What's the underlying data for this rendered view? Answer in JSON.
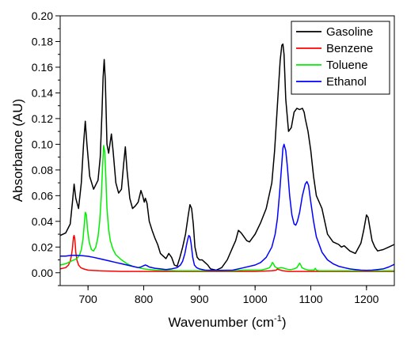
{
  "chart_data": {
    "type": "line",
    "xlabel": "Wavenumber (cm",
    "xlabel_sup": "-1",
    "xlabel_end": ")",
    "ylabel": "Absorbance (AU)",
    "xlim": [
      650,
      1250
    ],
    "ylim": [
      -0.01,
      0.2
    ],
    "x_ticks": [
      700,
      800,
      900,
      1000,
      1100,
      1200
    ],
    "x_tick_labels": [
      "700",
      "800",
      "900",
      "1000",
      "1100",
      "1200"
    ],
    "y_ticks": [
      0.0,
      0.02,
      0.04,
      0.06,
      0.08,
      0.1,
      0.12,
      0.14,
      0.16,
      0.18,
      0.2
    ],
    "y_tick_labels": [
      "0.00",
      "0.02",
      "0.04",
      "0.06",
      "0.08",
      "0.10",
      "0.12",
      "0.14",
      "0.16",
      "0.18",
      "0.20"
    ],
    "grid": false,
    "legend_position": "top-right",
    "series": [
      {
        "name": "Gasoline",
        "color": "#000000",
        "x": [
          650,
          660,
          668,
          672,
          675,
          678,
          683,
          688,
          692,
          695,
          698,
          703,
          710,
          718,
          722,
          725,
          727,
          729,
          731,
          734,
          737,
          740,
          742,
          745,
          750,
          755,
          760,
          764,
          767,
          770,
          775,
          780,
          785,
          790,
          795,
          798,
          801,
          803,
          806,
          810,
          815,
          820,
          825,
          830,
          835,
          840,
          845,
          850,
          855,
          860,
          865,
          870,
          875,
          880,
          883,
          886,
          889,
          892,
          896,
          900,
          905,
          910,
          915,
          920,
          930,
          940,
          950,
          960,
          965,
          970,
          975,
          980,
          985,
          990,
          995,
          1000,
          1010,
          1020,
          1030,
          1035,
          1040,
          1045,
          1048,
          1050,
          1052,
          1055,
          1060,
          1065,
          1070,
          1075,
          1080,
          1085,
          1088,
          1090,
          1095,
          1100,
          1105,
          1110,
          1115,
          1120,
          1125,
          1130,
          1140,
          1150,
          1155,
          1160,
          1170,
          1180,
          1190,
          1195,
          1200,
          1203,
          1206,
          1210,
          1215,
          1220,
          1230,
          1240,
          1250
        ],
        "y": [
          0.029,
          0.031,
          0.038,
          0.055,
          0.069,
          0.058,
          0.05,
          0.07,
          0.1,
          0.118,
          0.1,
          0.075,
          0.065,
          0.072,
          0.09,
          0.125,
          0.152,
          0.166,
          0.15,
          0.1,
          0.093,
          0.102,
          0.108,
          0.095,
          0.07,
          0.062,
          0.065,
          0.085,
          0.098,
          0.08,
          0.058,
          0.05,
          0.052,
          0.055,
          0.064,
          0.06,
          0.055,
          0.058,
          0.054,
          0.04,
          0.033,
          0.027,
          0.022,
          0.015,
          0.013,
          0.011,
          0.015,
          0.012,
          0.006,
          0.005,
          0.012,
          0.02,
          0.03,
          0.045,
          0.053,
          0.05,
          0.038,
          0.02,
          0.012,
          0.01,
          0.01,
          0.008,
          0.006,
          0.003,
          0.002,
          0.004,
          0.01,
          0.02,
          0.025,
          0.033,
          0.031,
          0.028,
          0.025,
          0.024,
          0.027,
          0.03,
          0.039,
          0.05,
          0.07,
          0.095,
          0.13,
          0.165,
          0.177,
          0.178,
          0.17,
          0.135,
          0.11,
          0.113,
          0.125,
          0.128,
          0.127,
          0.128,
          0.125,
          0.12,
          0.11,
          0.095,
          0.075,
          0.06,
          0.055,
          0.05,
          0.04,
          0.03,
          0.024,
          0.022,
          0.02,
          0.021,
          0.017,
          0.015,
          0.023,
          0.033,
          0.045,
          0.043,
          0.035,
          0.025,
          0.02,
          0.017,
          0.018,
          0.02,
          0.022
        ]
      },
      {
        "name": "Benzene",
        "color": "#ff0000",
        "x": [
          650,
          660,
          665,
          668,
          670,
          672,
          673,
          674,
          675,
          676,
          677,
          678,
          680,
          683,
          687,
          692,
          700,
          720,
          760,
          820,
          900,
          960,
          1000,
          1030,
          1038,
          1040,
          1042,
          1046,
          1050,
          1060,
          1100,
          1150,
          1200,
          1250
        ],
        "y": [
          0.003,
          0.004,
          0.006,
          0.009,
          0.013,
          0.019,
          0.024,
          0.028,
          0.029,
          0.027,
          0.022,
          0.016,
          0.01,
          0.006,
          0.004,
          0.003,
          0.002,
          0.0015,
          0.001,
          0.001,
          0.001,
          0.001,
          0.001,
          0.0015,
          0.002,
          0.003,
          0.0025,
          0.002,
          0.0015,
          0.001,
          0.001,
          0.001,
          0.001,
          0.001
        ]
      },
      {
        "name": "Toluene",
        "color": "#00ee00",
        "x": [
          650,
          660,
          670,
          675,
          680,
          685,
          688,
          691,
          693,
          695,
          697,
          699,
          702,
          706,
          710,
          714,
          718,
          721,
          724,
          726,
          728,
          730,
          732,
          734,
          737,
          740,
          745,
          750,
          760,
          770,
          780,
          790,
          800,
          820,
          840,
          860,
          880,
          900,
          920,
          940,
          960,
          980,
          1000,
          1010,
          1020,
          1026,
          1029,
          1031,
          1033,
          1035,
          1038,
          1042,
          1046,
          1050,
          1055,
          1060,
          1065,
          1070,
          1075,
          1078,
          1080,
          1082,
          1084,
          1088,
          1092,
          1096,
          1100,
          1106,
          1108,
          1110,
          1115,
          1120,
          1140,
          1160,
          1180,
          1200,
          1220,
          1250
        ],
        "y": [
          0.006,
          0.007,
          0.009,
          0.01,
          0.011,
          0.014,
          0.018,
          0.026,
          0.036,
          0.047,
          0.045,
          0.034,
          0.024,
          0.018,
          0.017,
          0.02,
          0.028,
          0.04,
          0.06,
          0.082,
          0.099,
          0.094,
          0.074,
          0.05,
          0.034,
          0.025,
          0.018,
          0.014,
          0.01,
          0.007,
          0.005,
          0.004,
          0.003,
          0.002,
          0.0018,
          0.0015,
          0.0015,
          0.0015,
          0.0015,
          0.0015,
          0.0015,
          0.002,
          0.002,
          0.002,
          0.003,
          0.004,
          0.006,
          0.008,
          0.007,
          0.005,
          0.004,
          0.0035,
          0.004,
          0.0038,
          0.003,
          0.0025,
          0.0025,
          0.003,
          0.004,
          0.006,
          0.0075,
          0.006,
          0.004,
          0.003,
          0.0025,
          0.002,
          0.002,
          0.002,
          0.0035,
          0.002,
          0.0015,
          0.0015,
          0.0015,
          0.0015,
          0.0015,
          0.0015,
          0.0015,
          0.0015
        ]
      },
      {
        "name": "Ethanol",
        "color": "#0000ff",
        "x": [
          650,
          660,
          670,
          680,
          690,
          700,
          710,
          720,
          730,
          740,
          750,
          760,
          770,
          780,
          790,
          795,
          800,
          803,
          806,
          810,
          820,
          830,
          840,
          850,
          860,
          866,
          870,
          874,
          877,
          879,
          881,
          883,
          885,
          888,
          891,
          895,
          900,
          910,
          920,
          940,
          960,
          980,
          1000,
          1010,
          1020,
          1030,
          1036,
          1040,
          1044,
          1048,
          1050,
          1052,
          1055,
          1058,
          1062,
          1066,
          1070,
          1073,
          1076,
          1080,
          1085,
          1090,
          1093,
          1096,
          1100,
          1105,
          1110,
          1120,
          1130,
          1140,
          1150,
          1160,
          1170,
          1180,
          1190,
          1200,
          1210,
          1220,
          1230,
          1240,
          1250
        ],
        "y": [
          0.013,
          0.013,
          0.0135,
          0.0135,
          0.0133,
          0.0128,
          0.012,
          0.011,
          0.01,
          0.009,
          0.008,
          0.007,
          0.006,
          0.005,
          0.004,
          0.0045,
          0.0055,
          0.006,
          0.0055,
          0.0045,
          0.0035,
          0.003,
          0.0025,
          0.003,
          0.004,
          0.006,
          0.009,
          0.015,
          0.022,
          0.026,
          0.029,
          0.028,
          0.023,
          0.012,
          0.006,
          0.004,
          0.003,
          0.002,
          0.0018,
          0.0018,
          0.002,
          0.004,
          0.006,
          0.008,
          0.012,
          0.02,
          0.03,
          0.042,
          0.062,
          0.085,
          0.097,
          0.1,
          0.095,
          0.082,
          0.06,
          0.045,
          0.038,
          0.037,
          0.04,
          0.047,
          0.06,
          0.069,
          0.071,
          0.068,
          0.055,
          0.04,
          0.028,
          0.016,
          0.01,
          0.007,
          0.005,
          0.004,
          0.003,
          0.0025,
          0.002,
          0.0018,
          0.002,
          0.0025,
          0.003,
          0.0045,
          0.0065
        ]
      }
    ]
  }
}
